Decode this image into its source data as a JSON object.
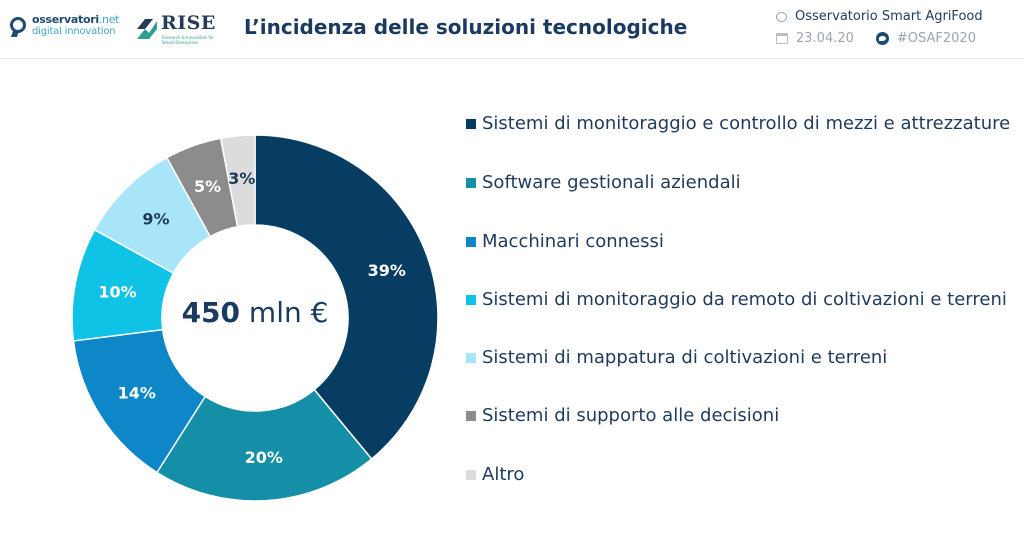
{
  "header": {
    "logo_observatori": {
      "name": "osservatori",
      "suffix": ".net",
      "subtitle": "digital innovation"
    },
    "logo_rise": {
      "name": "RISE",
      "subtitle": "Research & Innovation for Smart Enterprises"
    },
    "title": "L’incidenza delle soluzioni tecnologiche",
    "observatory": "Osservatorio Smart AgriFood",
    "date": "23.04.20",
    "hashtag": "#OSAF2020",
    "icons": [
      "chat-bubble-icon",
      "calendar-icon",
      "twitter-icon"
    ]
  },
  "chart_data": {
    "type": "pie",
    "donut": true,
    "center_value": "450",
    "center_unit": "mln €",
    "categories": [
      "Sistemi di monitoraggio e controllo di mezzi e attrezzature",
      "Software gestionali aziendali",
      "Macchinari connessi",
      "Sistemi di monitoraggio da remoto di coltivazioni e terreni",
      "Sistemi di mappatura di coltivazioni e terreni",
      "Sistemi di supporto alle decisioni",
      "Altro"
    ],
    "values": [
      39,
      20,
      14,
      10,
      9,
      5,
      3
    ],
    "labels": [
      "39%",
      "20%",
      "14%",
      "10%",
      "9%",
      "5%",
      "3%"
    ],
    "colors": [
      "#073d63",
      "#158fa8",
      "#0e87c8",
      "#0fc3e6",
      "#a9e5f8",
      "#8c8c8c",
      "#dcdcdc"
    ],
    "label_colors": [
      "#ffffff",
      "#ffffff",
      "#ffffff",
      "#ffffff",
      "#1f3b5c",
      "#ffffff",
      "#1f3b5c"
    ],
    "legend_position": "right"
  }
}
